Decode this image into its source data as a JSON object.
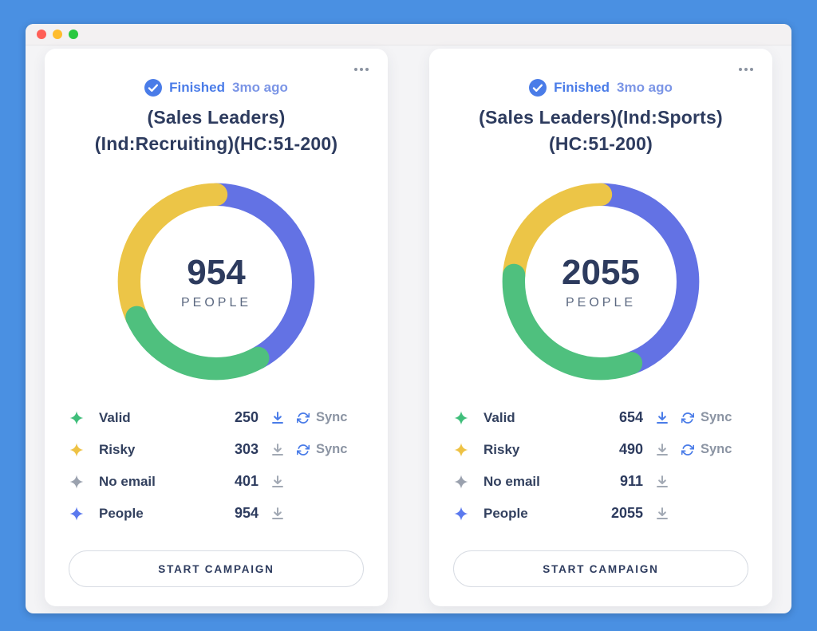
{
  "titlebar": {
    "traffic_lights": [
      "#ff5f57",
      "#febc2e",
      "#28c840"
    ]
  },
  "sync_label": "Sync",
  "colors": {
    "frame_blue": "#4a90e2",
    "accent_blue": "#4a7ce8",
    "navy_text": "#2d3b5e",
    "donut_blue": "#6372e4",
    "donut_green": "#4fc07e",
    "donut_yellow": "#ecc547"
  },
  "cards": [
    {
      "status_label": "Finished",
      "status_time": "3mo ago",
      "title_lines": [
        "(Sales Leaders)",
        "(Ind:Recruiting)(HC:51-200)"
      ],
      "count": "954",
      "count_label": "PEOPLE",
      "rows": [
        {
          "label": "Valid",
          "value": "250"
        },
        {
          "label": "Risky",
          "value": "303"
        },
        {
          "label": "No email",
          "value": "401"
        },
        {
          "label": "People",
          "value": "954"
        }
      ],
      "button_label": "START CAMPAIGN",
      "chart": {
        "type": "donut",
        "total": 954,
        "segments": [
          {
            "name": "No email",
            "value": 401,
            "color": "#6372e4",
            "z": 0
          },
          {
            "name": "Valid",
            "value": 250,
            "color": "#4fc07e",
            "z": 2
          },
          {
            "name": "Risky",
            "value": 303,
            "color": "#ecc547",
            "z": 1
          }
        ]
      }
    },
    {
      "status_label": "Finished",
      "status_time": "3mo ago",
      "title_lines": [
        "(Sales Leaders)(Ind:Sports)",
        "(HC:51-200)"
      ],
      "count": "2055",
      "count_label": "PEOPLE",
      "rows": [
        {
          "label": "Valid",
          "value": "654"
        },
        {
          "label": "Risky",
          "value": "490"
        },
        {
          "label": "No email",
          "value": "911"
        },
        {
          "label": "People",
          "value": "2055"
        }
      ],
      "button_label": "START CAMPAIGN",
      "chart": {
        "type": "donut",
        "total": 2055,
        "segments": [
          {
            "name": "No email",
            "value": 911,
            "color": "#6372e4",
            "z": 0
          },
          {
            "name": "Valid",
            "value": 654,
            "color": "#4fc07e",
            "z": 2
          },
          {
            "name": "Risky",
            "value": 490,
            "color": "#ecc547",
            "z": 1
          }
        ]
      }
    }
  ]
}
